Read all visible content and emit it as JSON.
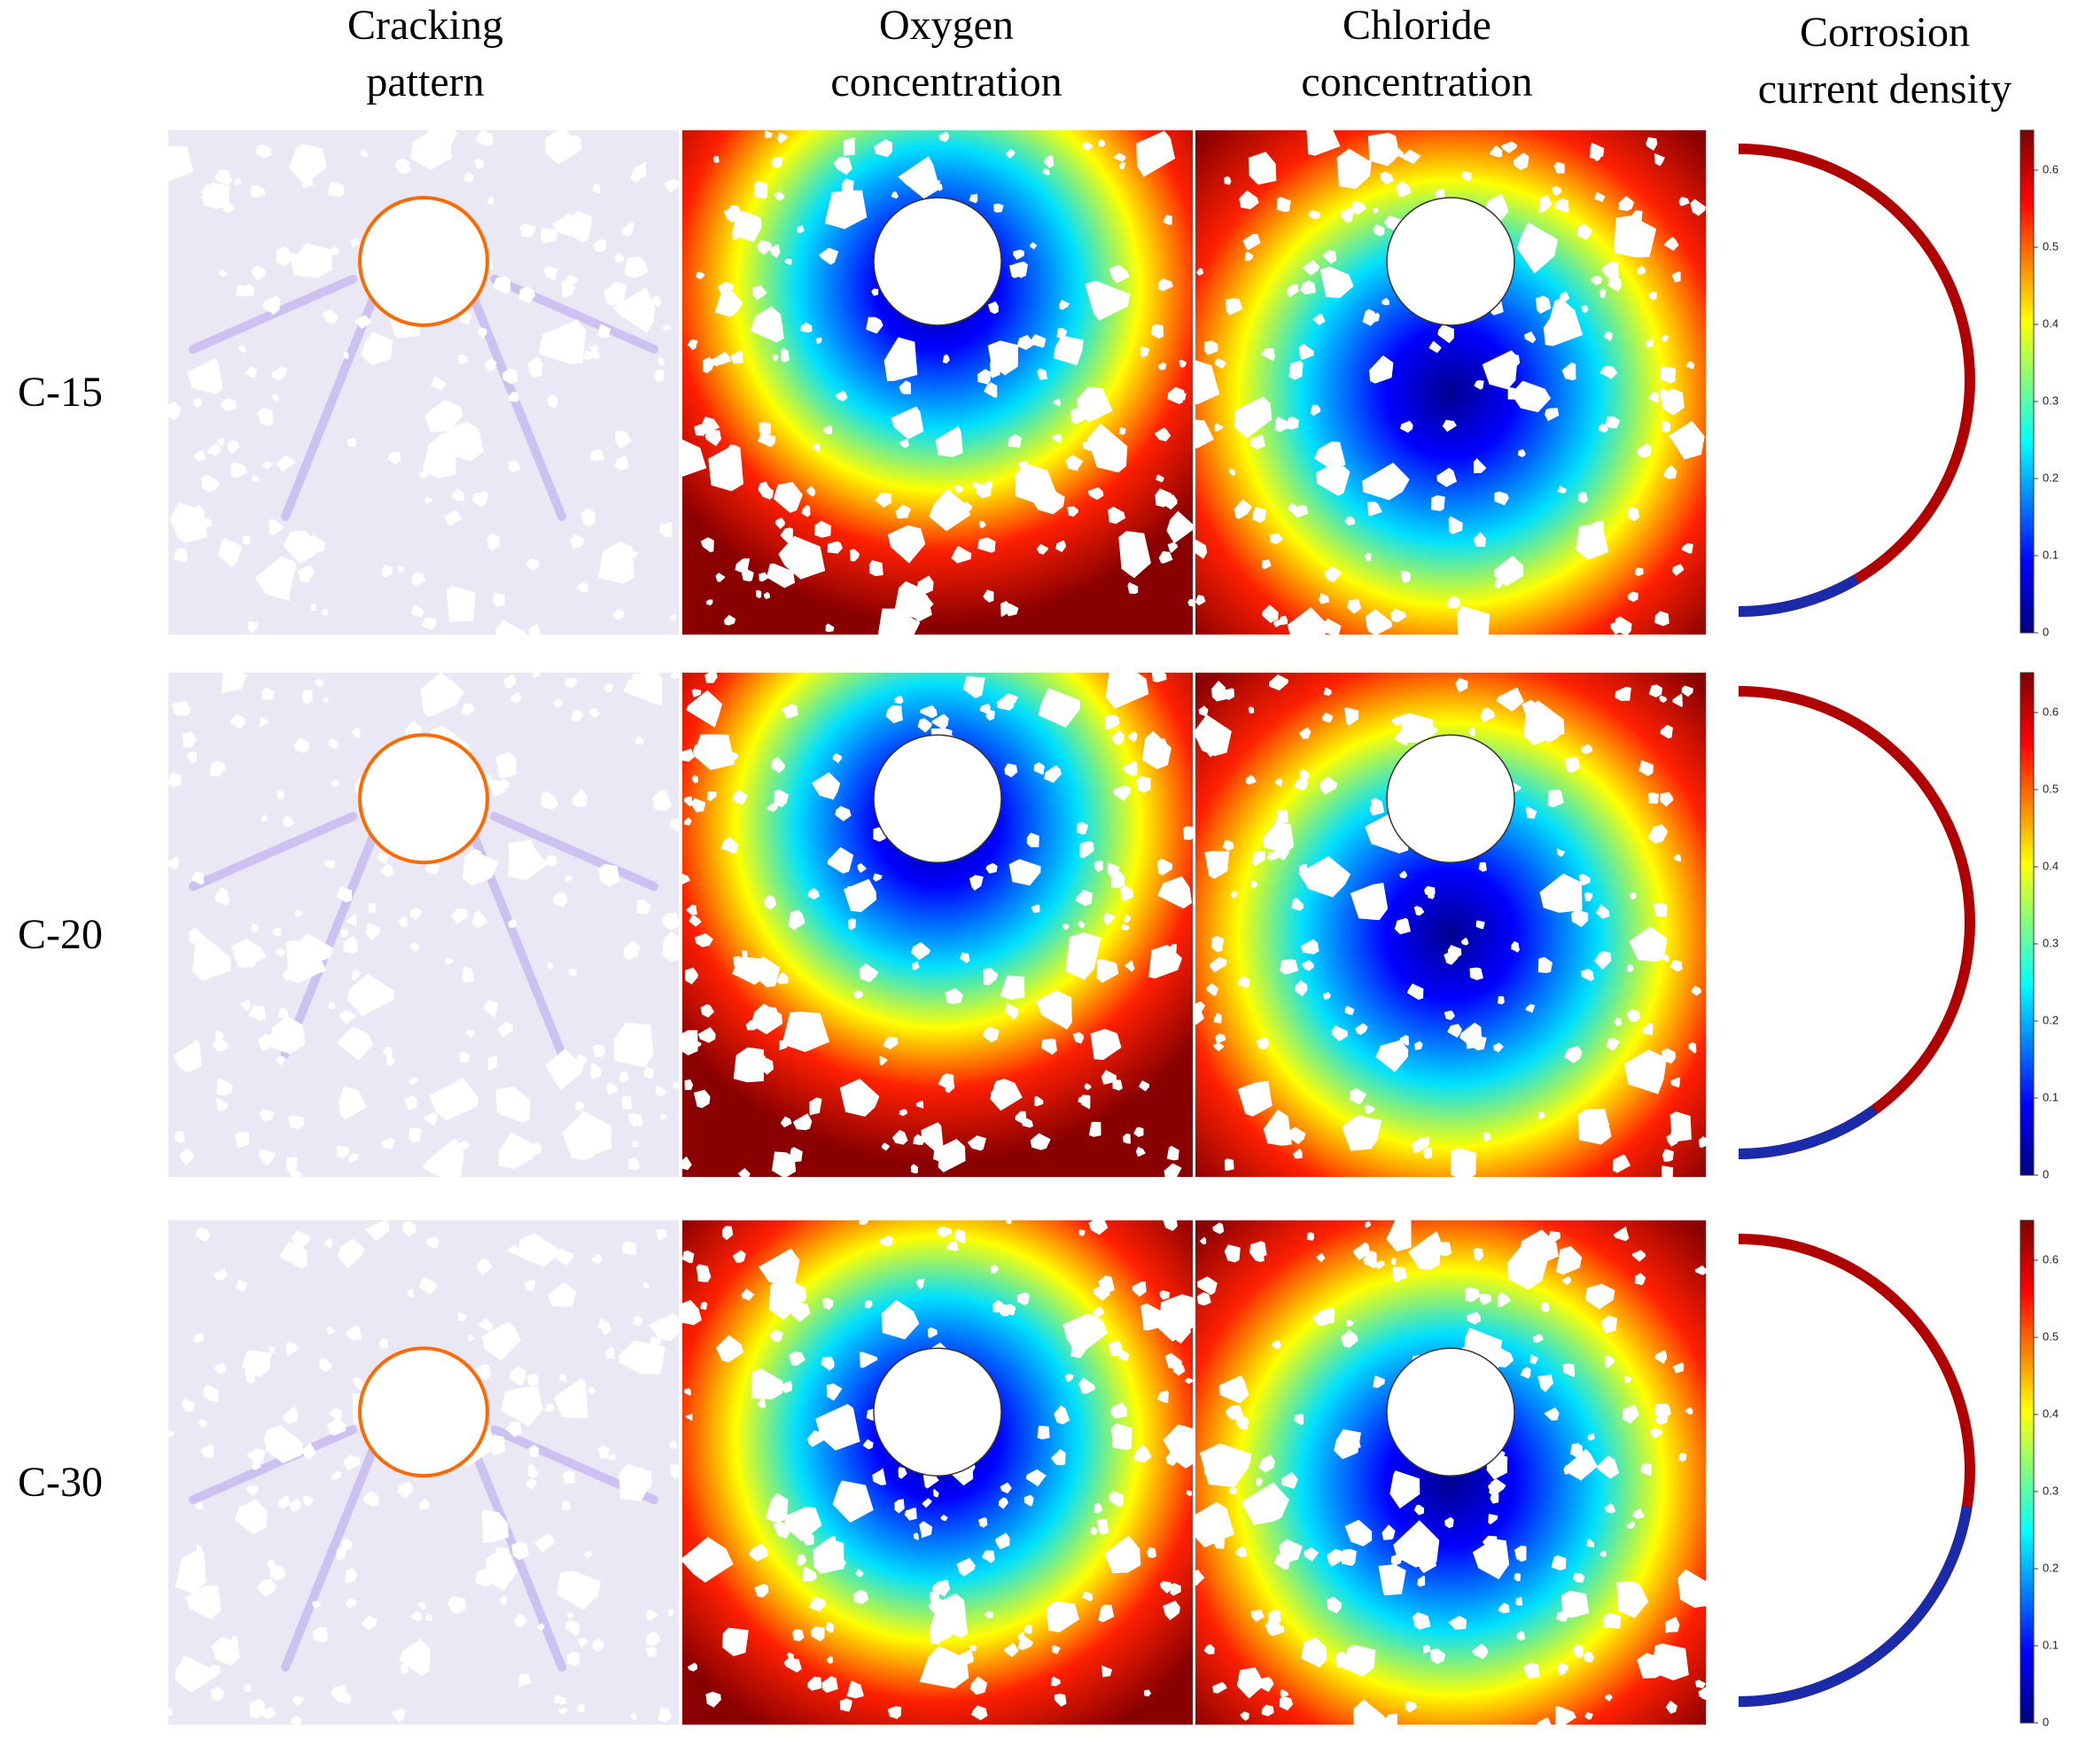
{
  "columns": [
    {
      "lines": [
        "Cracking",
        "pattern"
      ]
    },
    {
      "lines": [
        "Oxygen",
        "concentration"
      ]
    },
    {
      "lines": [
        "Chloride",
        "concentration"
      ]
    },
    {
      "lines": [
        "Corrosion",
        "current density"
      ]
    }
  ],
  "rows": [
    {
      "label": "C-15"
    },
    {
      "label": "C-20"
    },
    {
      "label": "C-30"
    }
  ],
  "colorbar": {
    "ticks": [
      "0",
      "0.1",
      "0.2",
      "0.3",
      "0.4",
      "0.5",
      "0.6"
    ]
  }
}
